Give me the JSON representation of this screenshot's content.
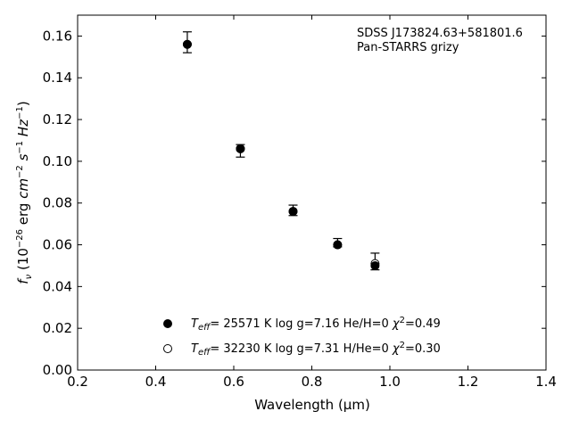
{
  "chart_data": {
    "type": "scatter",
    "title": "",
    "xlabel": "Wavelength (μm)",
    "ylabel": "fν (10⁻²⁶ erg cm⁻² s⁻¹ Hz⁻¹)",
    "xlim": [
      0.2,
      1.4
    ],
    "ylim": [
      0.0,
      0.17
    ],
    "x_ticks": [
      0.2,
      0.4,
      0.6,
      0.8,
      1.0,
      1.2,
      1.4
    ],
    "x_tick_labels": [
      "0.2",
      "0.4",
      "0.6",
      "0.8",
      "1.0",
      "1.2",
      "1.4"
    ],
    "y_ticks": [
      0.0,
      0.02,
      0.04,
      0.06,
      0.08,
      0.1,
      0.12,
      0.14,
      0.16
    ],
    "y_tick_labels": [
      "0.00",
      "0.02",
      "0.04",
      "0.06",
      "0.08",
      "0.10",
      "0.12",
      "0.14",
      "0.16"
    ],
    "annotations": [
      "SDSS J173824.63+581801.6",
      "Pan-STARRS grizy"
    ],
    "observed": {
      "x": [
        0.481,
        0.617,
        0.752,
        0.866,
        0.962
      ],
      "y": [
        0.157,
        0.105,
        0.077,
        0.061,
        0.052
      ],
      "yerr_low": [
        0.005,
        0.003,
        0.003,
        0.002,
        0.004
      ],
      "yerr_high": [
        0.005,
        0.003,
        0.002,
        0.002,
        0.004
      ]
    },
    "series": [
      {
        "name": "Teff= 25571 K  log g=7.16  He/H=0  χ²=0.49",
        "marker": "filled",
        "x": [
          0.481,
          0.617,
          0.752,
          0.866,
          0.962
        ],
        "y": [
          0.156,
          0.106,
          0.076,
          0.06,
          0.05
        ]
      },
      {
        "name": "Teff= 32230 K  log g=7.31  H/He=0  χ²=0.30",
        "marker": "open",
        "x": [
          0.481,
          0.617,
          0.752,
          0.866,
          0.962
        ],
        "y": [
          0.156,
          0.106,
          0.076,
          0.06,
          0.051
        ]
      }
    ],
    "legend": {
      "position": "bottom-center",
      "entries": [
        {
          "teff_val": "= 25571 K  log g=7.16  He/H=0  ",
          "chi_val": "=0.49"
        },
        {
          "teff_val": "= 32230 K  log g=7.31  H/He=0  ",
          "chi_val": "=0.30"
        }
      ]
    },
    "grid": false,
    "colors": {
      "marker": "#000000",
      "axes": "#000000",
      "background": "#ffffff"
    }
  }
}
